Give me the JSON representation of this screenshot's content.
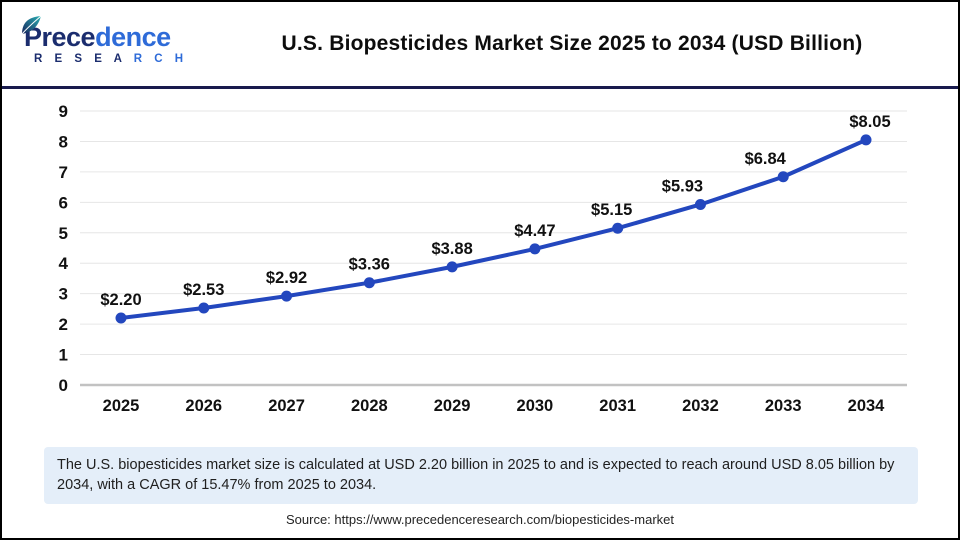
{
  "header": {
    "logo": {
      "name_part1": "Prece",
      "name_part2": "dence",
      "sub_part1": "R E S E A ",
      "sub_part2": "R C H"
    },
    "title": "U.S. Biopesticides Market Size 2025 to 2034 (USD Billion)"
  },
  "chart_data": {
    "type": "line",
    "title": "U.S. Biopesticides Market Size 2025 to 2034 (USD Billion)",
    "categories": [
      "2025",
      "2026",
      "2027",
      "2028",
      "2029",
      "2030",
      "2031",
      "2032",
      "2033",
      "2034"
    ],
    "values": [
      2.2,
      2.53,
      2.92,
      3.36,
      3.88,
      4.47,
      5.15,
      5.93,
      6.84,
      8.05
    ],
    "data_labels": [
      "$2.20",
      "$2.53",
      "$2.92",
      "$3.36",
      "$3.88",
      "$4.47",
      "$5.15",
      "$5.93",
      "$6.84",
      "$8.05"
    ],
    "xlabel": "",
    "ylabel": "",
    "ylim": [
      0,
      9
    ],
    "ytick_step": 1,
    "yticks": [
      "0",
      "1",
      "2",
      "3",
      "4",
      "5",
      "6",
      "7",
      "8",
      "9"
    ],
    "grid": true,
    "legend": "none",
    "line_color": "#2347be",
    "marker": "circle"
  },
  "summary": {
    "text": "The U.S. biopesticides market size is calculated at USD 2.20 billion in 2025 to and is expected to reach around USD 8.05 billion by 2034, with a CAGR of 15.47% from 2025 to 2034."
  },
  "source": {
    "text": "Source: https://www.precedenceresearch.com/biopesticides-market"
  },
  "colors": {
    "line_blue": "#2347be",
    "divider_navy": "#181a4d",
    "logo_navy": "#1b2d6e",
    "logo_blue": "#2e6bd8",
    "leaf_teal": "#2ab0b4",
    "summary_bg": "#e4eef9",
    "gridline": "#e6e6e6",
    "axis_gray": "#c2c2c2",
    "text_dark": "#111111"
  }
}
